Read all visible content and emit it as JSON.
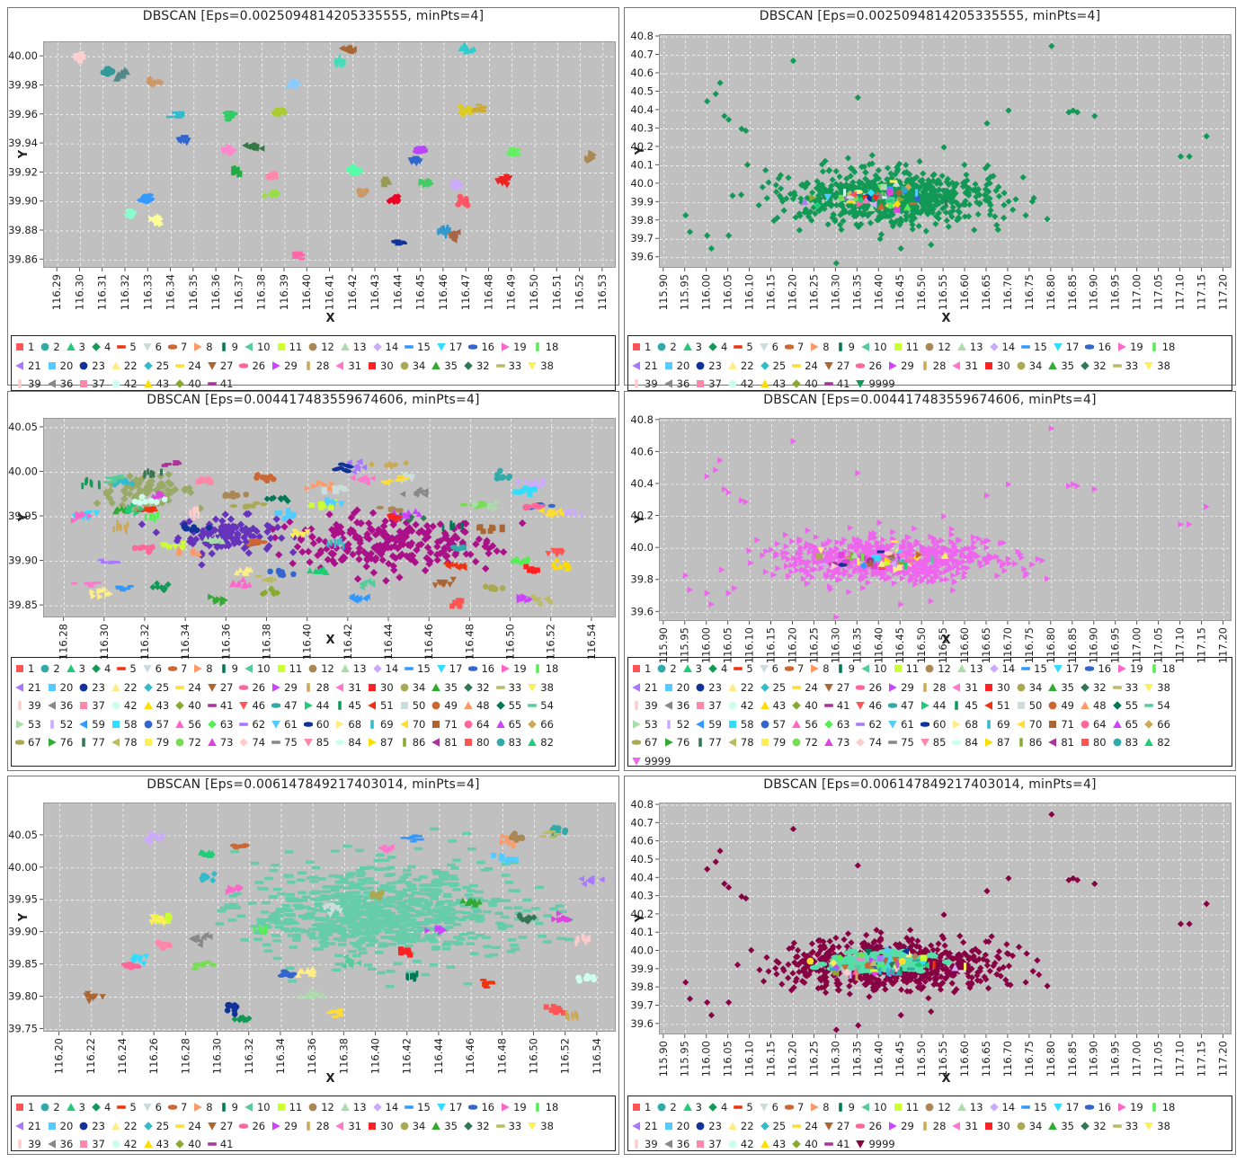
{
  "chart_data": [
    {
      "type": "scatter",
      "title": "DBSCAN [Eps=0.0025094814205335555, minPts=4]",
      "xlabel": "X",
      "ylabel": "Y",
      "xlim": [
        116.284,
        116.536
      ],
      "ylim": [
        39.854,
        40.01
      ],
      "xticks": [
        "116.29",
        "116.30",
        "116.31",
        "116.32",
        "116.33",
        "116.34",
        "116.35",
        "116.36",
        "116.37",
        "116.38",
        "116.39",
        "116.40",
        "116.41",
        "116.42",
        "116.43",
        "116.44",
        "116.45",
        "116.46",
        "116.47",
        "116.48",
        "116.49",
        "116.50",
        "116.51",
        "116.52",
        "116.53"
      ],
      "yticks": [
        "39.86",
        "39.88",
        "39.90",
        "39.92",
        "39.94",
        "39.96",
        "39.98",
        "40.00"
      ],
      "grid": true,
      "legend_position": "bottom",
      "legend": [
        [
          "1",
          "2",
          "3",
          "4",
          "5",
          "6",
          "7",
          "8",
          "9",
          "10",
          "11",
          "12",
          "13",
          "14",
          "15",
          "17",
          "16",
          "19",
          "18"
        ],
        [
          "21",
          "20",
          "23",
          "22",
          "25",
          "24",
          "27",
          "26",
          "29",
          "28",
          "31",
          "30",
          "34",
          "35",
          "32",
          "33",
          "38"
        ],
        [
          "39",
          "36",
          "37",
          "42",
          "43",
          "40",
          "41"
        ]
      ],
      "clusters": [
        {
          "x": 116.3,
          "y": 40.0,
          "color": "#ffd0d0"
        },
        {
          "x": 116.312,
          "y": 39.99,
          "color": "#339999"
        },
        {
          "x": 116.318,
          "y": 39.988,
          "color": "#558888"
        },
        {
          "x": 116.332,
          "y": 39.982,
          "color": "#cc9966"
        },
        {
          "x": 116.343,
          "y": 39.96,
          "color": "#33bbcc"
        },
        {
          "x": 116.346,
          "y": 39.943,
          "color": "#3366cc"
        },
        {
          "x": 116.366,
          "y": 39.96,
          "color": "#33cc66"
        },
        {
          "x": 116.366,
          "y": 39.936,
          "color": "#ff88cc"
        },
        {
          "x": 116.369,
          "y": 39.921,
          "color": "#22aa44"
        },
        {
          "x": 116.376,
          "y": 39.938,
          "color": "#337744"
        },
        {
          "x": 116.384,
          "y": 39.918,
          "color": "#ff88aa"
        },
        {
          "x": 116.388,
          "y": 39.962,
          "color": "#aacc33"
        },
        {
          "x": 116.393,
          "y": 39.982,
          "color": "#88ccff"
        },
        {
          "x": 116.385,
          "y": 39.905,
          "color": "#99dd44"
        },
        {
          "x": 116.396,
          "y": 39.863,
          "color": "#ff66aa"
        },
        {
          "x": 116.322,
          "y": 39.891,
          "color": "#88ffcc"
        },
        {
          "x": 116.329,
          "y": 39.902,
          "color": "#3399ff"
        },
        {
          "x": 116.334,
          "y": 39.887,
          "color": "#ffff99"
        },
        {
          "x": 116.414,
          "y": 39.996,
          "color": "#44ddbb"
        },
        {
          "x": 116.418,
          "y": 40.005,
          "color": "#aa6633"
        },
        {
          "x": 116.42,
          "y": 39.921,
          "color": "#55ffaa"
        },
        {
          "x": 116.424,
          "y": 39.906,
          "color": "#cc9966"
        },
        {
          "x": 116.434,
          "y": 39.914,
          "color": "#999955"
        },
        {
          "x": 116.439,
          "y": 39.901,
          "color": "#ee0022"
        },
        {
          "x": 116.44,
          "y": 39.872,
          "color": "#113399"
        },
        {
          "x": 116.447,
          "y": 39.928,
          "color": "#3366cc"
        },
        {
          "x": 116.45,
          "y": 39.936,
          "color": "#bb44ff"
        },
        {
          "x": 116.452,
          "y": 39.913,
          "color": "#44cc66"
        },
        {
          "x": 116.46,
          "y": 39.88,
          "color": "#3399cc"
        },
        {
          "x": 116.465,
          "y": 39.877,
          "color": "#aa6644"
        },
        {
          "x": 116.466,
          "y": 39.912,
          "color": "#ccaaff"
        },
        {
          "x": 116.469,
          "y": 39.9,
          "color": "#ff5566"
        },
        {
          "x": 116.47,
          "y": 40.005,
          "color": "#33cccc"
        },
        {
          "x": 116.47,
          "y": 39.962,
          "color": "#ddcc22"
        },
        {
          "x": 116.475,
          "y": 39.964,
          "color": "#ccaa33"
        },
        {
          "x": 116.486,
          "y": 39.915,
          "color": "#ee2222"
        },
        {
          "x": 116.49,
          "y": 39.934,
          "color": "#66ee66"
        },
        {
          "x": 116.525,
          "y": 39.931,
          "color": "#aa8855"
        }
      ]
    },
    {
      "type": "scatter",
      "title": "DBSCAN [Eps=0.0025094814205335555, minPts=4]",
      "xlabel": "X",
      "ylabel": "Y",
      "xlim": [
        115.89,
        117.22
      ],
      "ylim": [
        39.54,
        40.81
      ],
      "xticks": [
        "115.90",
        "115.95",
        "116.00",
        "116.05",
        "116.10",
        "116.15",
        "116.20",
        "116.25",
        "116.30",
        "116.35",
        "116.40",
        "116.45",
        "116.50",
        "116.55",
        "116.60",
        "116.65",
        "116.70",
        "116.75",
        "116.80",
        "116.85",
        "116.90",
        "116.95",
        "117.00",
        "117.05",
        "117.10",
        "117.15",
        "117.20"
      ],
      "yticks": [
        "39.6",
        "39.7",
        "39.8",
        "39.9",
        "40.0",
        "40.1",
        "40.2",
        "40.3",
        "40.4",
        "40.5",
        "40.6",
        "40.7",
        "40.8"
      ],
      "grid": true,
      "legend_position": "bottom",
      "noise_color": "#119955",
      "legend": [
        [
          "1",
          "2",
          "3",
          "4",
          "5",
          "6",
          "7",
          "8",
          "9",
          "10",
          "11",
          "12",
          "13",
          "14",
          "15",
          "17",
          "16",
          "19",
          "18"
        ],
        [
          "21",
          "20",
          "23",
          "22",
          "25",
          "24",
          "27",
          "26",
          "29",
          "28",
          "31",
          "30",
          "34",
          "35",
          "32",
          "33",
          "38"
        ],
        [
          "39",
          "36",
          "37",
          "42",
          "43",
          "40",
          "41",
          "9999"
        ]
      ]
    },
    {
      "type": "scatter",
      "title": "DBSCAN [Eps=0.004417483559674606, minPts=4]",
      "xlabel": "X",
      "ylabel": "Y",
      "xlim": [
        116.27,
        116.552
      ],
      "ylim": [
        39.836,
        40.06
      ],
      "xticks": [
        "116.28",
        "116.30",
        "116.32",
        "116.34",
        "116.36",
        "116.38",
        "116.40",
        "116.42",
        "116.44",
        "116.46",
        "116.48",
        "116.50",
        "116.52",
        "116.54"
      ],
      "yticks": [
        "39.85",
        "39.90",
        "39.95",
        "40.00",
        "40.05"
      ],
      "grid": true,
      "legend_position": "bottom",
      "legend": [
        [
          "1",
          "2",
          "3",
          "4",
          "5",
          "6",
          "7",
          "8",
          "9",
          "10",
          "11",
          "12",
          "13",
          "14",
          "15",
          "17",
          "16",
          "19",
          "18"
        ],
        [
          "21",
          "20",
          "23",
          "22",
          "25",
          "24",
          "27",
          "26",
          "29",
          "28",
          "31",
          "30",
          "34",
          "35",
          "32",
          "33",
          "38"
        ],
        [
          "39",
          "36",
          "37",
          "42",
          "43",
          "40",
          "41",
          "46",
          "47",
          "44",
          "45",
          "51",
          "50",
          "49",
          "48",
          "55",
          "54"
        ],
        [
          "53",
          "52",
          "59",
          "58",
          "57",
          "56",
          "63",
          "62",
          "61",
          "60",
          "68",
          "69",
          "70",
          "71",
          "64",
          "65",
          "66"
        ],
        [
          "67",
          "76",
          "77",
          "78",
          "79",
          "72",
          "73",
          "74",
          "75",
          "85",
          "84",
          "87",
          "86",
          "81",
          "80",
          "83",
          "82"
        ]
      ]
    },
    {
      "type": "scatter",
      "title": "DBSCAN [Eps=0.004417483559674606, minPts=4]",
      "xlabel": "X",
      "ylabel": "Y",
      "xlim": [
        115.89,
        117.22
      ],
      "ylim": [
        39.54,
        40.81
      ],
      "xticks": [
        "115.90",
        "115.95",
        "116.00",
        "116.05",
        "116.10",
        "116.15",
        "116.20",
        "116.25",
        "116.30",
        "116.35",
        "116.40",
        "116.45",
        "116.50",
        "116.55",
        "116.60",
        "116.65",
        "116.70",
        "116.75",
        "116.80",
        "116.85",
        "116.90",
        "116.95",
        "117.00",
        "117.05",
        "117.10",
        "117.15",
        "117.20"
      ],
      "yticks": [
        "39.6",
        "39.8",
        "40.0",
        "40.2",
        "40.4",
        "40.6",
        "40.8"
      ],
      "grid": true,
      "legend_position": "bottom",
      "noise_color": "#ee66ee",
      "legend": [
        [
          "1",
          "2",
          "3",
          "4",
          "5",
          "6",
          "7",
          "8",
          "9",
          "10",
          "11",
          "12",
          "13",
          "14",
          "15",
          "17",
          "16",
          "19",
          "18"
        ],
        [
          "21",
          "20",
          "23",
          "22",
          "25",
          "24",
          "27",
          "26",
          "29",
          "28",
          "31",
          "30",
          "34",
          "35",
          "32",
          "33",
          "38"
        ],
        [
          "39",
          "36",
          "37",
          "42",
          "43",
          "40",
          "41",
          "46",
          "47",
          "44",
          "45",
          "51",
          "50",
          "49",
          "48",
          "55",
          "54"
        ],
        [
          "53",
          "52",
          "59",
          "58",
          "57",
          "56",
          "63",
          "62",
          "61",
          "60",
          "68",
          "69",
          "70",
          "71",
          "64",
          "65",
          "66"
        ],
        [
          "67",
          "76",
          "77",
          "78",
          "79",
          "72",
          "73",
          "74",
          "75",
          "85",
          "84",
          "87",
          "86",
          "81",
          "80",
          "83",
          "82"
        ],
        [
          "9999"
        ]
      ]
    },
    {
      "type": "scatter",
      "title": "DBSCAN [Eps=0.006147849217403014, minPts=4]",
      "xlabel": "X",
      "ylabel": "Y",
      "xlim": [
        116.19,
        116.552
      ],
      "ylim": [
        39.745,
        40.1
      ],
      "xticks": [
        "116.20",
        "116.22",
        "116.24",
        "116.26",
        "116.28",
        "116.30",
        "116.32",
        "116.34",
        "116.36",
        "116.38",
        "116.40",
        "116.42",
        "116.44",
        "116.46",
        "116.48",
        "116.50",
        "116.52",
        "116.54"
      ],
      "yticks": [
        "39.75",
        "39.80",
        "39.85",
        "39.90",
        "39.95",
        "40.00",
        "40.05"
      ],
      "grid": true,
      "legend_position": "bottom",
      "legend": [
        [
          "1",
          "2",
          "3",
          "4",
          "5",
          "6",
          "7",
          "8",
          "9",
          "10",
          "11",
          "12",
          "13",
          "14",
          "15",
          "17",
          "16",
          "19",
          "18"
        ],
        [
          "21",
          "20",
          "23",
          "22",
          "25",
          "24",
          "27",
          "26",
          "29",
          "28",
          "31",
          "30",
          "34",
          "35",
          "32",
          "33",
          "38"
        ],
        [
          "39",
          "36",
          "37",
          "42",
          "43",
          "40",
          "41"
        ]
      ]
    },
    {
      "type": "scatter",
      "title": "DBSCAN [Eps=0.006147849217403014, minPts=4]",
      "xlabel": "X",
      "ylabel": "Y",
      "xlim": [
        115.89,
        117.22
      ],
      "ylim": [
        39.54,
        40.81
      ],
      "xticks": [
        "115.90",
        "115.95",
        "116.00",
        "116.05",
        "116.10",
        "116.15",
        "116.20",
        "116.25",
        "116.30",
        "116.35",
        "116.40",
        "116.45",
        "116.50",
        "116.55",
        "116.60",
        "116.65",
        "116.70",
        "116.75",
        "116.80",
        "116.85",
        "116.90",
        "116.95",
        "117.00",
        "117.05",
        "117.10",
        "117.15",
        "117.20"
      ],
      "yticks": [
        "39.6",
        "39.7",
        "39.8",
        "39.9",
        "40.0",
        "40.1",
        "40.2",
        "40.3",
        "40.4",
        "40.5",
        "40.6",
        "40.7",
        "40.8"
      ],
      "grid": true,
      "legend_position": "bottom",
      "noise_color": "#880044",
      "legend": [
        [
          "1",
          "2",
          "3",
          "4",
          "5",
          "6",
          "7",
          "8",
          "9",
          "10",
          "11",
          "12",
          "13",
          "14",
          "15",
          "17",
          "16",
          "19",
          "18"
        ],
        [
          "21",
          "20",
          "23",
          "22",
          "25",
          "24",
          "27",
          "26",
          "29",
          "28",
          "31",
          "30",
          "34",
          "35",
          "32",
          "33",
          "38"
        ],
        [
          "39",
          "36",
          "37",
          "42",
          "43",
          "40",
          "41",
          "9999"
        ]
      ]
    }
  ]
}
